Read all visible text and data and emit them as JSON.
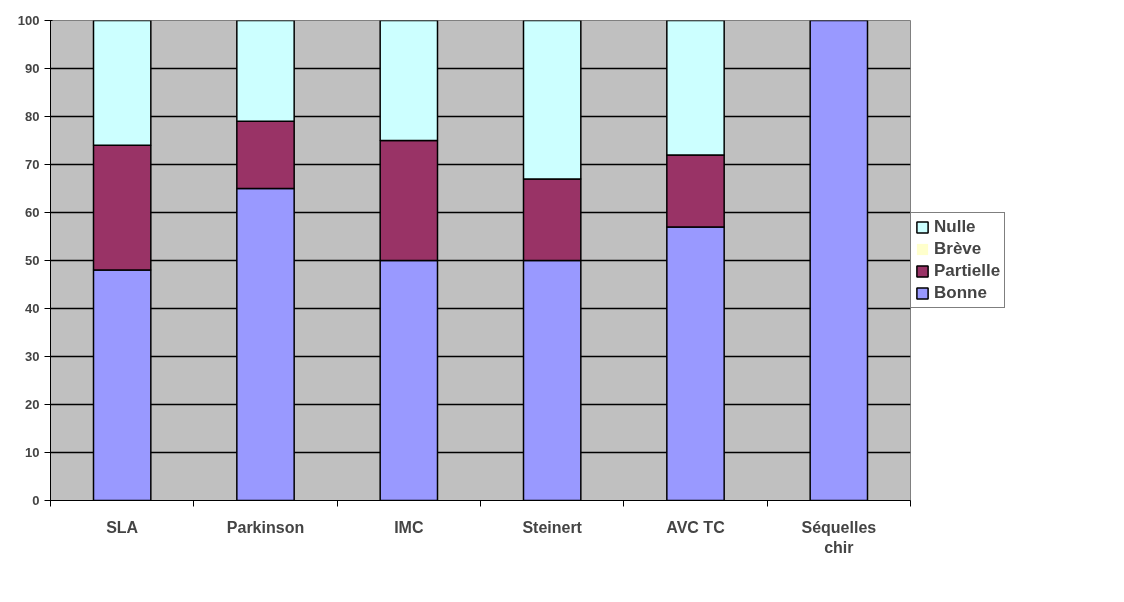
{
  "chart_data": {
    "type": "bar",
    "stacked": true,
    "categories": [
      "SLA",
      "Parkinson",
      "IMC",
      "Steinert",
      "AVC TC",
      "Séquelles chir"
    ],
    "series": [
      {
        "name": "Bonne",
        "color": "#9999ff",
        "values": [
          48,
          65,
          50,
          50,
          57,
          100
        ]
      },
      {
        "name": "Partielle",
        "color": "#993366",
        "values": [
          26,
          14,
          25,
          17,
          15,
          0
        ]
      },
      {
        "name": "Brève",
        "color": "#ffffcc",
        "values": [
          0,
          0,
          0,
          0,
          0,
          0
        ]
      },
      {
        "name": "Nulle",
        "color": "#ccffff",
        "values": [
          26,
          21,
          25,
          33,
          28,
          0
        ]
      }
    ],
    "ylim": [
      0,
      100
    ],
    "yticks": [
      0,
      10,
      20,
      30,
      40,
      50,
      60,
      70,
      80,
      90,
      100
    ],
    "grid": "y",
    "legend": "right"
  }
}
